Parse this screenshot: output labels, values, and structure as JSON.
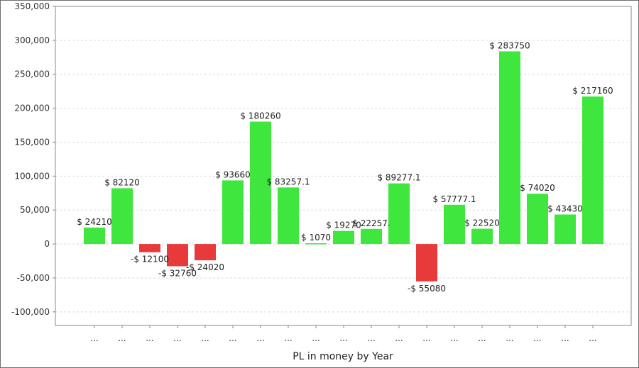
{
  "chart_data": {
    "type": "bar",
    "title": "",
    "xlabel": "PL in money by Year",
    "ylabel": "",
    "ylim": [
      -120000,
      350000
    ],
    "yticks": [
      -100000,
      -50000,
      0,
      50000,
      100000,
      150000,
      200000,
      250000,
      300000,
      350000
    ],
    "ytick_labels": [
      "-100,000",
      "-50,000",
      "0",
      "50,000",
      "100,000",
      "150,000",
      "200,000",
      "250,000",
      "300,000",
      "350,000"
    ],
    "grid": true,
    "legend": "none",
    "categories": [
      "...",
      "...",
      "...",
      "...",
      "...",
      "...",
      "...",
      "...",
      "...",
      "...",
      "...",
      "...",
      "...",
      "...",
      "...",
      "...",
      "...",
      "...",
      "..."
    ],
    "values": [
      24210,
      82120,
      -12100,
      -32760,
      -24020,
      93660,
      180260,
      83257.1,
      1070,
      19270,
      22257,
      89277.1,
      -55080,
      57777.1,
      22520,
      283750,
      74020,
      43430,
      217160
    ],
    "data_labels": [
      "$ 24210",
      "$ 82120",
      "-$ 12100",
      "-$ 32760",
      "-$ 24020",
      "$ 93660",
      "$ 180260",
      "$ 83257.1",
      "$ 1070",
      "$ 19270",
      "$ 22257.",
      "$ 89277.1",
      "-$ 55080",
      "$ 57777.1",
      "$ 22520",
      "$ 283750",
      "$ 74020",
      "$ 43430",
      "$ 217160"
    ],
    "colors": {
      "positive": "#3ee63e",
      "negative": "#e83a3a",
      "axis": "#888888"
    }
  }
}
